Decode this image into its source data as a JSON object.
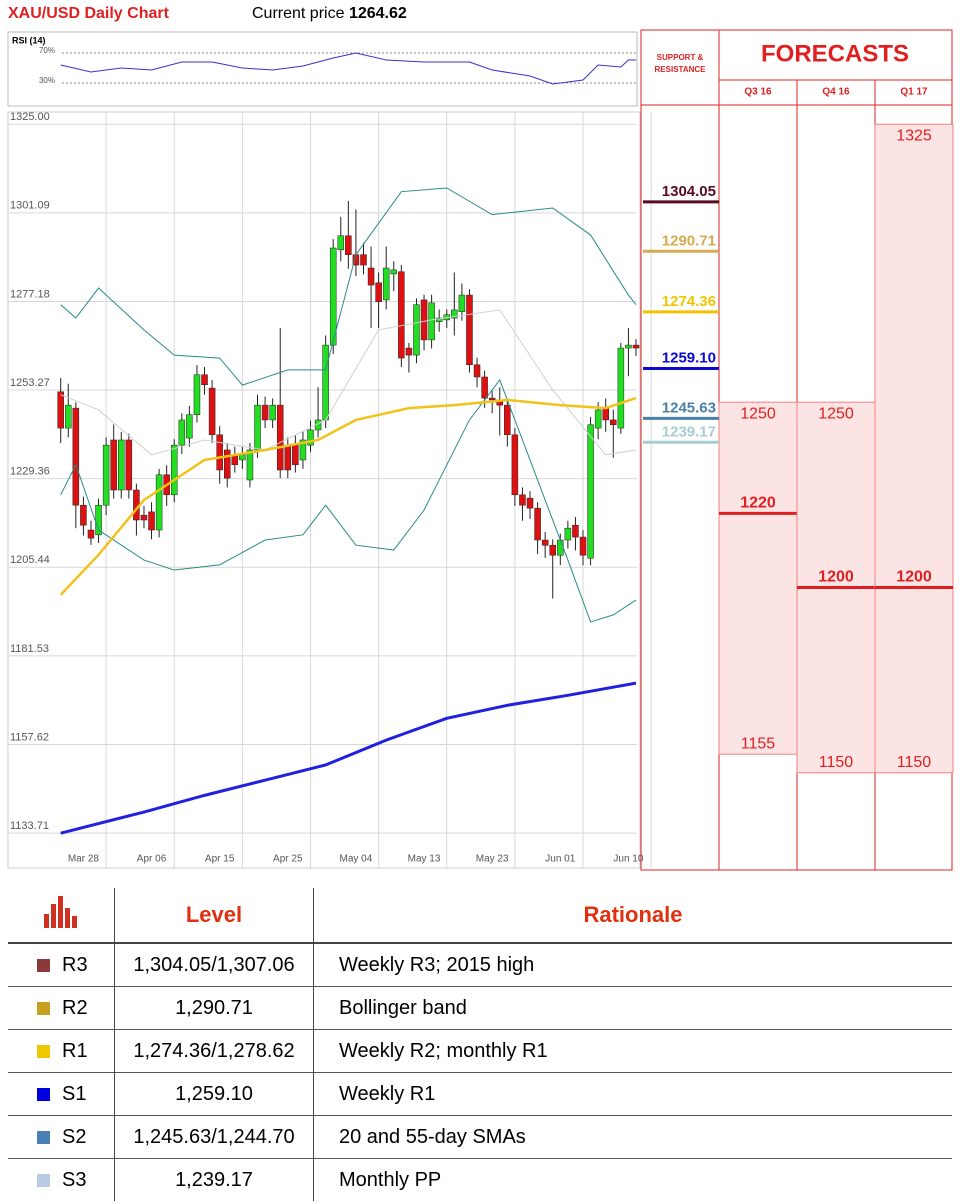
{
  "header": {
    "title": "XAU/USD Daily Chart",
    "price_label": "Current price",
    "price": 1264.62
  },
  "chart_data": [
    {
      "type": "candlestick",
      "ylim": [
        1124.3,
        1328.3
      ],
      "yticks": [
        {
          "value": 1325,
          "label": "1325.00"
        },
        1301.09,
        1277.18,
        1253.27,
        1229.36,
        1205.44,
        1181.53,
        1157.62,
        1133.71
      ],
      "grid": true,
      "up_color": "#22dd22",
      "down_color": "#dd1111",
      "categories": [
        null,
        null,
        null,
        "Mar 28",
        null,
        null,
        null,
        null,
        null,
        null,
        null,
        null,
        "Apr 06",
        null,
        null,
        null,
        null,
        null,
        null,
        null,
        null,
        "Apr 15",
        null,
        null,
        null,
        null,
        null,
        null,
        null,
        null,
        "Apr 25",
        null,
        null,
        null,
        null,
        null,
        null,
        null,
        null,
        "May 04",
        null,
        null,
        null,
        null,
        null,
        null,
        null,
        null,
        "May 13",
        null,
        null,
        null,
        null,
        null,
        null,
        null,
        null,
        "May 23",
        null,
        null,
        null,
        null,
        null,
        null,
        null,
        null,
        "Jun 01",
        null,
        null,
        null,
        null,
        null,
        null,
        null,
        null,
        "Jun 10",
        null
      ],
      "ohlc": [
        [
          1252.8,
          1256.5,
          1239.0,
          1243.0
        ],
        [
          1243.0,
          1255.0,
          1240.5,
          1249.2
        ],
        [
          1248.4,
          1250.0,
          1216.0,
          1222.2
        ],
        [
          1222.2,
          1224.5,
          1214.0,
          1216.8
        ],
        [
          1215.5,
          1218.0,
          1211.5,
          1213.3
        ],
        [
          1214.2,
          1224.0,
          1212.0,
          1222.2
        ],
        [
          1222.2,
          1240.5,
          1219.5,
          1238.4
        ],
        [
          1239.8,
          1244.0,
          1224.0,
          1226.3
        ],
        [
          1226.3,
          1242.0,
          1224.0,
          1239.8
        ],
        [
          1239.8,
          1241.5,
          1224.0,
          1226.3
        ],
        [
          1226.3,
          1228.0,
          1214.0,
          1218.2
        ],
        [
          1219.5,
          1222.0,
          1216.0,
          1218.2
        ],
        [
          1220.4,
          1223.0,
          1213.0,
          1215.5
        ],
        [
          1215.5,
          1232.0,
          1213.5,
          1230.4
        ],
        [
          1230.4,
          1233.0,
          1222.0,
          1225.0
        ],
        [
          1225.0,
          1240.0,
          1223.0,
          1238.4
        ],
        [
          1238.4,
          1247.0,
          1236.0,
          1245.2
        ],
        [
          1240.3,
          1249.0,
          1238.0,
          1246.6
        ],
        [
          1246.6,
          1260.0,
          1244.5,
          1257.4
        ],
        [
          1257.4,
          1259.5,
          1252.0,
          1254.7
        ],
        [
          1253.8,
          1256.0,
          1239.0,
          1241.2
        ],
        [
          1241.2,
          1243.5,
          1228.0,
          1231.7
        ],
        [
          1237.1,
          1239.0,
          1227.0,
          1229.5
        ],
        [
          1235.8,
          1238.0,
          1231.0,
          1233.1
        ],
        [
          1234.4,
          1238.0,
          1232.0,
          1235.8
        ],
        [
          1229.0,
          1239.0,
          1227.0,
          1237.1
        ],
        [
          1237.1,
          1252.0,
          1235.0,
          1249.2
        ],
        [
          1249.2,
          1251.5,
          1243.0,
          1245.2
        ],
        [
          1245.2,
          1251.0,
          1243.0,
          1249.2
        ],
        [
          1249.2,
          1270.0,
          1229.5,
          1231.7
        ],
        [
          1238.4,
          1240.5,
          1229.5,
          1231.7
        ],
        [
          1238.4,
          1241.0,
          1231.0,
          1233.1
        ],
        [
          1234.4,
          1242.0,
          1232.0,
          1239.8
        ],
        [
          1238.4,
          1245.0,
          1236.5,
          1242.5
        ],
        [
          1242.5,
          1254.0,
          1240.5,
          1245.2
        ],
        [
          1245.2,
          1268.0,
          1243.0,
          1265.4
        ],
        [
          1265.4,
          1294.0,
          1263.0,
          1291.6
        ],
        [
          1291.1,
          1300.0,
          1288.0,
          1294.9
        ],
        [
          1294.9,
          1304.3,
          1286.0,
          1289.8
        ],
        [
          1289.8,
          1302.0,
          1284.0,
          1287.0
        ],
        [
          1289.8,
          1293.0,
          1284.5,
          1287.0
        ],
        [
          1286.2,
          1292.0,
          1270.0,
          1281.6
        ],
        [
          1282.2,
          1285.0,
          1270.0,
          1277.1
        ],
        [
          1277.6,
          1292.0,
          1275.0,
          1286.2
        ],
        [
          1284.6,
          1288.0,
          1280.0,
          1285.7
        ],
        [
          1285.2,
          1287.0,
          1259.5,
          1261.9
        ],
        [
          1264.6,
          1266.0,
          1258.0,
          1262.7
        ],
        [
          1262.7,
          1278.0,
          1260.5,
          1276.3
        ],
        [
          1277.6,
          1279.0,
          1264.0,
          1266.8
        ],
        [
          1266.8,
          1279.0,
          1264.5,
          1276.8
        ],
        [
          1271.7,
          1275.0,
          1269.0,
          1272.7
        ],
        [
          1272.2,
          1275.0,
          1270.0,
          1273.6
        ],
        [
          1272.7,
          1285.0,
          1268.0,
          1274.9
        ],
        [
          1274.4,
          1282.0,
          1272.0,
          1278.9
        ],
        [
          1278.9,
          1280.5,
          1258.0,
          1260.1
        ],
        [
          1260.1,
          1262.0,
          1254.0,
          1256.8
        ],
        [
          1256.8,
          1258.5,
          1248.5,
          1251.1
        ],
        [
          1251.1,
          1253.0,
          1247.0,
          1250.6
        ],
        [
          1250.6,
          1254.0,
          1241.0,
          1249.2
        ],
        [
          1249.2,
          1251.0,
          1238.0,
          1241.2
        ],
        [
          1241.2,
          1243.0,
          1222.0,
          1225.0
        ],
        [
          1225.0,
          1227.0,
          1218.0,
          1222.2
        ],
        [
          1224.1,
          1226.0,
          1218.5,
          1221.4
        ],
        [
          1221.4,
          1223.0,
          1209.0,
          1212.8
        ],
        [
          1212.8,
          1215.0,
          1208.0,
          1211.4
        ],
        [
          1211.4,
          1213.0,
          1197.0,
          1208.7
        ],
        [
          1208.7,
          1214.5,
          1206.0,
          1212.8
        ],
        [
          1212.8,
          1218.0,
          1210.5,
          1216.0
        ],
        [
          1216.8,
          1219.0,
          1210.0,
          1213.6
        ],
        [
          1213.6,
          1215.5,
          1206.0,
          1208.7
        ],
        [
          1207.9,
          1246.0,
          1206.0,
          1243.9
        ],
        [
          1243.0,
          1250.0,
          1240.0,
          1247.9
        ],
        [
          1248.4,
          1251.0,
          1242.0,
          1245.2
        ],
        [
          1245.2,
          1248.0,
          1235.0,
          1243.9
        ],
        [
          1243.0,
          1266.0,
          1241.5,
          1264.6
        ],
        [
          1264.6,
          1270.0,
          1257.0,
          1265.4
        ],
        [
          1265.4,
          1267.0,
          1262.5,
          1264.6
        ]
      ],
      "lines": [
        {
          "color": "#d0d0d0",
          "width": 1,
          "x": [
            0,
            5,
            12,
            19,
            27,
            35,
            42,
            49,
            58,
            65,
            72,
            76
          ],
          "values": [
            1252.0,
            1247.9,
            1235.8,
            1239.8,
            1237.1,
            1245.2,
            1269.5,
            1272.2,
            1274.9,
            1253.3,
            1235.8,
            1237.1
          ]
        },
        {
          "color": "#2a8a8a",
          "width": 1,
          "x": [
            0,
            2,
            5,
            11,
            15,
            21,
            24,
            30,
            35,
            39,
            45,
            51,
            57,
            65,
            70,
            75,
            76
          ],
          "values": [
            1276.3,
            1272.7,
            1280.8,
            1269.5,
            1262.7,
            1261.9,
            1254.6,
            1258.7,
            1258.7,
            1289.8,
            1306.8,
            1307.8,
            1300.6,
            1302.4,
            1295.1,
            1278.9,
            1276.3
          ]
        },
        {
          "color": "#2a8a8a",
          "width": 1,
          "x": [
            0,
            2,
            5,
            11,
            15,
            21,
            27,
            32,
            35,
            39,
            44,
            48,
            54,
            58,
            62,
            67,
            70,
            73,
            76
          ],
          "values": [
            1225.0,
            1233.1,
            1215.5,
            1207.4,
            1204.7,
            1206.1,
            1212.8,
            1214.2,
            1222.2,
            1211.4,
            1210.1,
            1220.9,
            1245.2,
            1256.0,
            1234.4,
            1207.4,
            1190.7,
            1192.6,
            1196.6
          ]
        },
        {
          "color": "#f2c21a",
          "width": 2.5,
          "x": [
            0,
            5,
            11,
            19,
            27,
            34,
            39,
            46,
            52,
            59,
            66,
            72,
            76
          ],
          "values": [
            1198.0,
            1208.8,
            1223.6,
            1234.4,
            1237.1,
            1239.8,
            1245.2,
            1248.4,
            1249.2,
            1250.6,
            1249.2,
            1248.4,
            1251.1
          ]
        },
        {
          "color": "#2020e0",
          "width": 3,
          "x": [
            0,
            11,
            19,
            27,
            35,
            43,
            51,
            59,
            67,
            76
          ],
          "values": [
            1133.7,
            1139.4,
            1143.9,
            1148.0,
            1152.1,
            1158.8,
            1164.7,
            1168.2,
            1170.9,
            1174.2
          ]
        }
      ]
    },
    {
      "type": "line",
      "title": "RSI (14)",
      "ylim": [
        0,
        98
      ],
      "yticks": [
        {
          "value": 70,
          "label": "70%"
        },
        {
          "value": 30,
          "label": "30%"
        }
      ],
      "color": "#3333cc",
      "x": [
        0,
        4,
        8,
        12,
        16,
        20,
        24,
        28,
        32,
        36,
        39,
        43,
        48,
        54,
        57,
        62,
        65,
        69,
        71,
        74,
        75,
        76
      ],
      "values": [
        54,
        44.7,
        50,
        47.3,
        58,
        58,
        50,
        47.3,
        52.7,
        63.3,
        70,
        60.7,
        58,
        58,
        47.3,
        39.3,
        28.7,
        34,
        54,
        51.3,
        60.7,
        60.7
      ]
    }
  ],
  "support_resistance": {
    "title": "SUPPORT & RESISTANCE",
    "levels": [
      {
        "value": 1304.05,
        "color": "#5a0a1e"
      },
      {
        "value": 1290.71,
        "color": "#d8aa50"
      },
      {
        "value": 1274.36,
        "color": "#f2c400"
      },
      {
        "value": 1259.1,
        "label": "1259.10",
        "color": "#0a0ad0"
      },
      {
        "value": 1245.63,
        "color": "#4a7fa8"
      },
      {
        "value": 1239.17,
        "color": "#a8ccd4"
      }
    ]
  },
  "forecasts": {
    "title": "FORECASTS",
    "color": "#e02020",
    "periods": [
      {
        "label": "Q3 16",
        "high": 1250,
        "target": 1220,
        "low": 1155
      },
      {
        "label": "Q4 16",
        "high": 1250,
        "target": 1200,
        "low": 1150
      },
      {
        "label": "Q1 17",
        "high": 1325,
        "target": 1200,
        "low": 1150
      }
    ]
  },
  "table": {
    "headers": [
      "Level",
      "Rationale"
    ],
    "rows": [
      {
        "name": "R3",
        "color": "#8b3a3a",
        "level": "1,304.05/1,307.06",
        "rationale": "Weekly R3; 2015 high"
      },
      {
        "name": "R2",
        "color": "#c8a020",
        "level": "1,290.71",
        "rationale": "Bollinger band"
      },
      {
        "name": "R1",
        "color": "#f0c800",
        "level": "1,274.36/1,278.62",
        "rationale": "Weekly R2; monthly R1"
      },
      {
        "name": "S1",
        "color": "#0000e0",
        "level": "1,259.10",
        "rationale": "Weekly R1"
      },
      {
        "name": "S2",
        "color": "#4a80b8",
        "level": "1,245.63/1,244.70",
        "rationale": "20 and 55-day SMAs"
      },
      {
        "name": "S3",
        "color": "#b8cce4",
        "level": "1,239.17",
        "rationale": "Monthly PP"
      }
    ]
  }
}
